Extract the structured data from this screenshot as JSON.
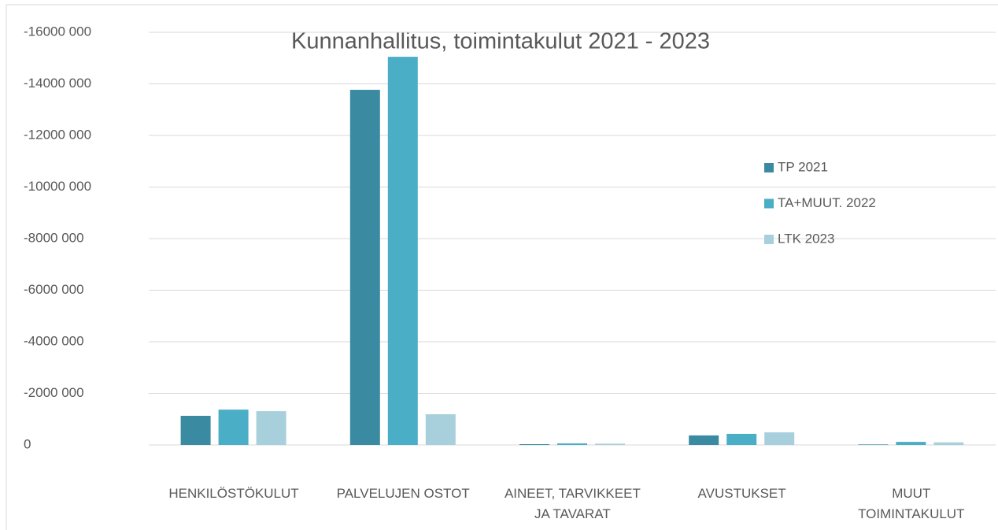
{
  "chart_data": {
    "type": "bar",
    "title": "Kunnanhallitus, toimintakulut 2021 - 2023",
    "categories": [
      "HENKILÖSTÖKULUT",
      "PALVELUJEN OSTOT",
      "AINEET, TARVIKKEET\nJA TAVARAT",
      "AVUSTUKSET",
      "MUUT\nTOIMINTAKULUT"
    ],
    "series": [
      {
        "name": "TP 2021",
        "color": "#3a8ba1",
        "values": [
          -1130000,
          -13770000,
          -30000,
          -370000,
          -20000
        ]
      },
      {
        "name": "TA+MUUT. 2022",
        "color": "#4aaec6",
        "values": [
          -1370000,
          -15050000,
          -60000,
          -430000,
          -120000
        ]
      },
      {
        "name": "LTK 2023",
        "color": "#a8d0dc",
        "values": [
          -1310000,
          -1190000,
          -50000,
          -490000,
          -100000
        ]
      }
    ],
    "ylim": [
      0,
      -16000000
    ],
    "yticks": [
      0,
      {
        "value": -2000000,
        "label": "-2000 000"
      },
      {
        "value": -4000000,
        "label": "-4000 000"
      },
      {
        "value": -6000000,
        "label": "-6000 000"
      },
      {
        "value": -8000000,
        "label": "-8000 000"
      },
      {
        "value": -10000000,
        "label": "-10000 000"
      },
      {
        "value": -12000000,
        "label": "-12000 000"
      },
      {
        "value": -14000000,
        "label": "-14000 000"
      },
      {
        "value": -16000000,
        "label": "-16000 000"
      }
    ],
    "grid": true,
    "legend": "right"
  }
}
